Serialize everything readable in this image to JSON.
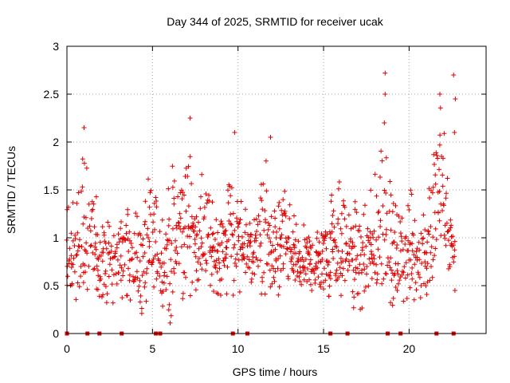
{
  "chart_data": {
    "type": "scatter",
    "title": "Day 344 of 2025, SRMTID for receiver ucak",
    "xlabel": "GPS time / hours",
    "ylabel": "SRMTID / TECUs",
    "xlim": [
      0,
      24.5
    ],
    "ylim": [
      0,
      3
    ],
    "xticks": [
      0,
      5,
      10,
      15,
      20
    ],
    "xtick_labels": [
      "0",
      "5",
      "10",
      "15",
      "20"
    ],
    "yticks": [
      0,
      0.5,
      1,
      1.5,
      2,
      2.5,
      3
    ],
    "ytick_labels": [
      "0",
      "0.5",
      "1",
      "1.5",
      "2",
      "2.5",
      "3"
    ],
    "grid": true,
    "marker": "+",
    "color": "#e00000",
    "series": [
      {
        "name": "SRMTID",
        "envelope_hours": [
          0,
          0.5,
          1,
          1.5,
          2,
          2.5,
          3,
          3.5,
          4,
          4.5,
          5,
          5.5,
          6,
          6.5,
          7,
          7.5,
          8,
          8.5,
          9,
          9.5,
          10,
          10.5,
          11,
          11.5,
          12,
          12.5,
          13,
          13.5,
          14,
          14.5,
          15,
          15.5,
          16,
          16.5,
          17,
          17.5,
          18,
          18.5,
          19,
          19.5,
          20,
          20.5,
          21,
          21.5,
          22,
          22.5
        ],
        "envelope_low": [
          0.2,
          0.3,
          0.35,
          0.3,
          0.25,
          0.3,
          0.35,
          0.4,
          0.25,
          0.15,
          0.4,
          0.2,
          0.05,
          0.35,
          0.35,
          0.45,
          0.5,
          0.45,
          0.4,
          0.4,
          0.4,
          0.45,
          0.45,
          0.4,
          0.35,
          0.35,
          0.45,
          0.45,
          0.45,
          0.45,
          0.45,
          0.35,
          0.3,
          0.35,
          0.2,
          0.15,
          0.2,
          0.35,
          0.3,
          0.25,
          0.35,
          0.3,
          0.35,
          0.35,
          0.35,
          0.45
        ],
        "envelope_high": [
          1.7,
          1.5,
          2.15,
          1.85,
          1.45,
          1.5,
          1.4,
          1.55,
          1.5,
          1.5,
          1.8,
          1.5,
          1.9,
          1.8,
          2.25,
          1.7,
          1.85,
          1.6,
          1.45,
          2.1,
          1.6,
          1.5,
          1.5,
          2.05,
          1.5,
          1.75,
          1.55,
          1.3,
          1.3,
          1.2,
          1.4,
          1.85,
          1.85,
          1.65,
          1.55,
          1.45,
          1.75,
          2.7,
          1.55,
          1.45,
          1.75,
          1.45,
          1.55,
          2.5,
          2.7,
          1.45
        ],
        "outliers": [
          {
            "x": 1.0,
            "y": 2.15
          },
          {
            "x": 7.2,
            "y": 2.25
          },
          {
            "x": 9.8,
            "y": 2.1
          },
          {
            "x": 11.9,
            "y": 2.05
          },
          {
            "x": 18.6,
            "y": 2.72
          },
          {
            "x": 18.6,
            "y": 2.5
          },
          {
            "x": 18.55,
            "y": 2.2
          },
          {
            "x": 21.8,
            "y": 2.5
          },
          {
            "x": 22.6,
            "y": 2.7
          },
          {
            "x": 22.7,
            "y": 2.45
          },
          {
            "x": 22.65,
            "y": 2.1
          }
        ],
        "zero_markers_hours": [
          0.0,
          1.2,
          1.9,
          3.2,
          5.2,
          5.45,
          9.7,
          10.55,
          15.4,
          16.4,
          18.75,
          19.5,
          21.6,
          22.6
        ]
      }
    ]
  }
}
